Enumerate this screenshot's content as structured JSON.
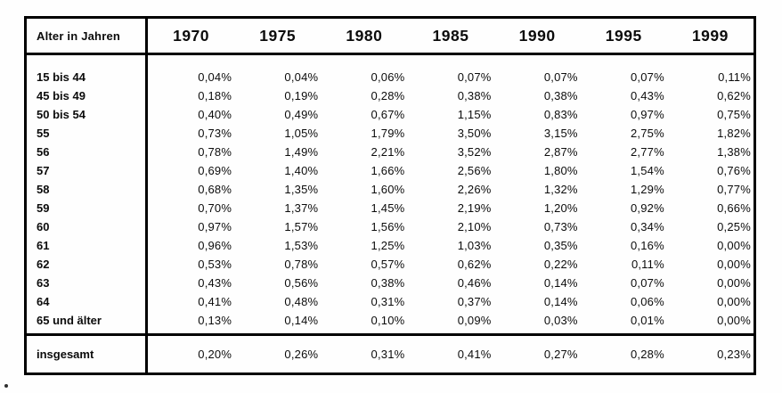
{
  "table": {
    "corner_label": "Alter in Jahren",
    "years": [
      "1970",
      "1975",
      "1980",
      "1985",
      "1990",
      "1995",
      "1999"
    ],
    "rows": [
      {
        "label": "15 bis 44",
        "values": [
          "0,04%",
          "0,04%",
          "0,06%",
          "0,07%",
          "0,07%",
          "0,07%",
          "0,11%"
        ]
      },
      {
        "label": "45 bis 49",
        "values": [
          "0,18%",
          "0,19%",
          "0,28%",
          "0,38%",
          "0,38%",
          "0,43%",
          "0,62%"
        ]
      },
      {
        "label": "50 bis 54",
        "values": [
          "0,40%",
          "0,49%",
          "0,67%",
          "1,15%",
          "0,83%",
          "0,97%",
          "0,75%"
        ]
      },
      {
        "label": "55",
        "values": [
          "0,73%",
          "1,05%",
          "1,79%",
          "3,50%",
          "3,15%",
          "2,75%",
          "1,82%"
        ]
      },
      {
        "label": "56",
        "values": [
          "0,78%",
          "1,49%",
          "2,21%",
          "3,52%",
          "2,87%",
          "2,77%",
          "1,38%"
        ]
      },
      {
        "label": "57",
        "values": [
          "0,69%",
          "1,40%",
          "1,66%",
          "2,56%",
          "1,80%",
          "1,54%",
          "0,76%"
        ]
      },
      {
        "label": "58",
        "values": [
          "0,68%",
          "1,35%",
          "1,60%",
          "2,26%",
          "1,32%",
          "1,29%",
          "0,77%"
        ]
      },
      {
        "label": "59",
        "values": [
          "0,70%",
          "1,37%",
          "1,45%",
          "2,19%",
          "1,20%",
          "0,92%",
          "0,66%"
        ]
      },
      {
        "label": "60",
        "values": [
          "0,97%",
          "1,57%",
          "1,56%",
          "2,10%",
          "0,73%",
          "0,34%",
          "0,25%"
        ]
      },
      {
        "label": "61",
        "values": [
          "0,96%",
          "1,53%",
          "1,25%",
          "1,03%",
          "0,35%",
          "0,16%",
          "0,00%"
        ]
      },
      {
        "label": "62",
        "values": [
          "0,53%",
          "0,78%",
          "0,57%",
          "0,62%",
          "0,22%",
          "0,11%",
          "0,00%"
        ]
      },
      {
        "label": "63",
        "values": [
          "0,43%",
          "0,56%",
          "0,38%",
          "0,46%",
          "0,14%",
          "0,07%",
          "0,00%"
        ]
      },
      {
        "label": "64",
        "values": [
          "0,41%",
          "0,48%",
          "0,31%",
          "0,37%",
          "0,14%",
          "0,06%",
          "0,00%"
        ]
      },
      {
        "label": "65 und älter",
        "values": [
          "0,13%",
          "0,14%",
          "0,10%",
          "0,09%",
          "0,03%",
          "0,01%",
          "0,00%"
        ]
      }
    ],
    "total_row": {
      "label": "insgesamt",
      "values": [
        "0,20%",
        "0,26%",
        "0,31%",
        "0,41%",
        "0,27%",
        "0,28%",
        "0,23%"
      ]
    }
  },
  "colors": {
    "border": "#000000",
    "text": "#0c0c0c",
    "background": "#fefefe"
  }
}
